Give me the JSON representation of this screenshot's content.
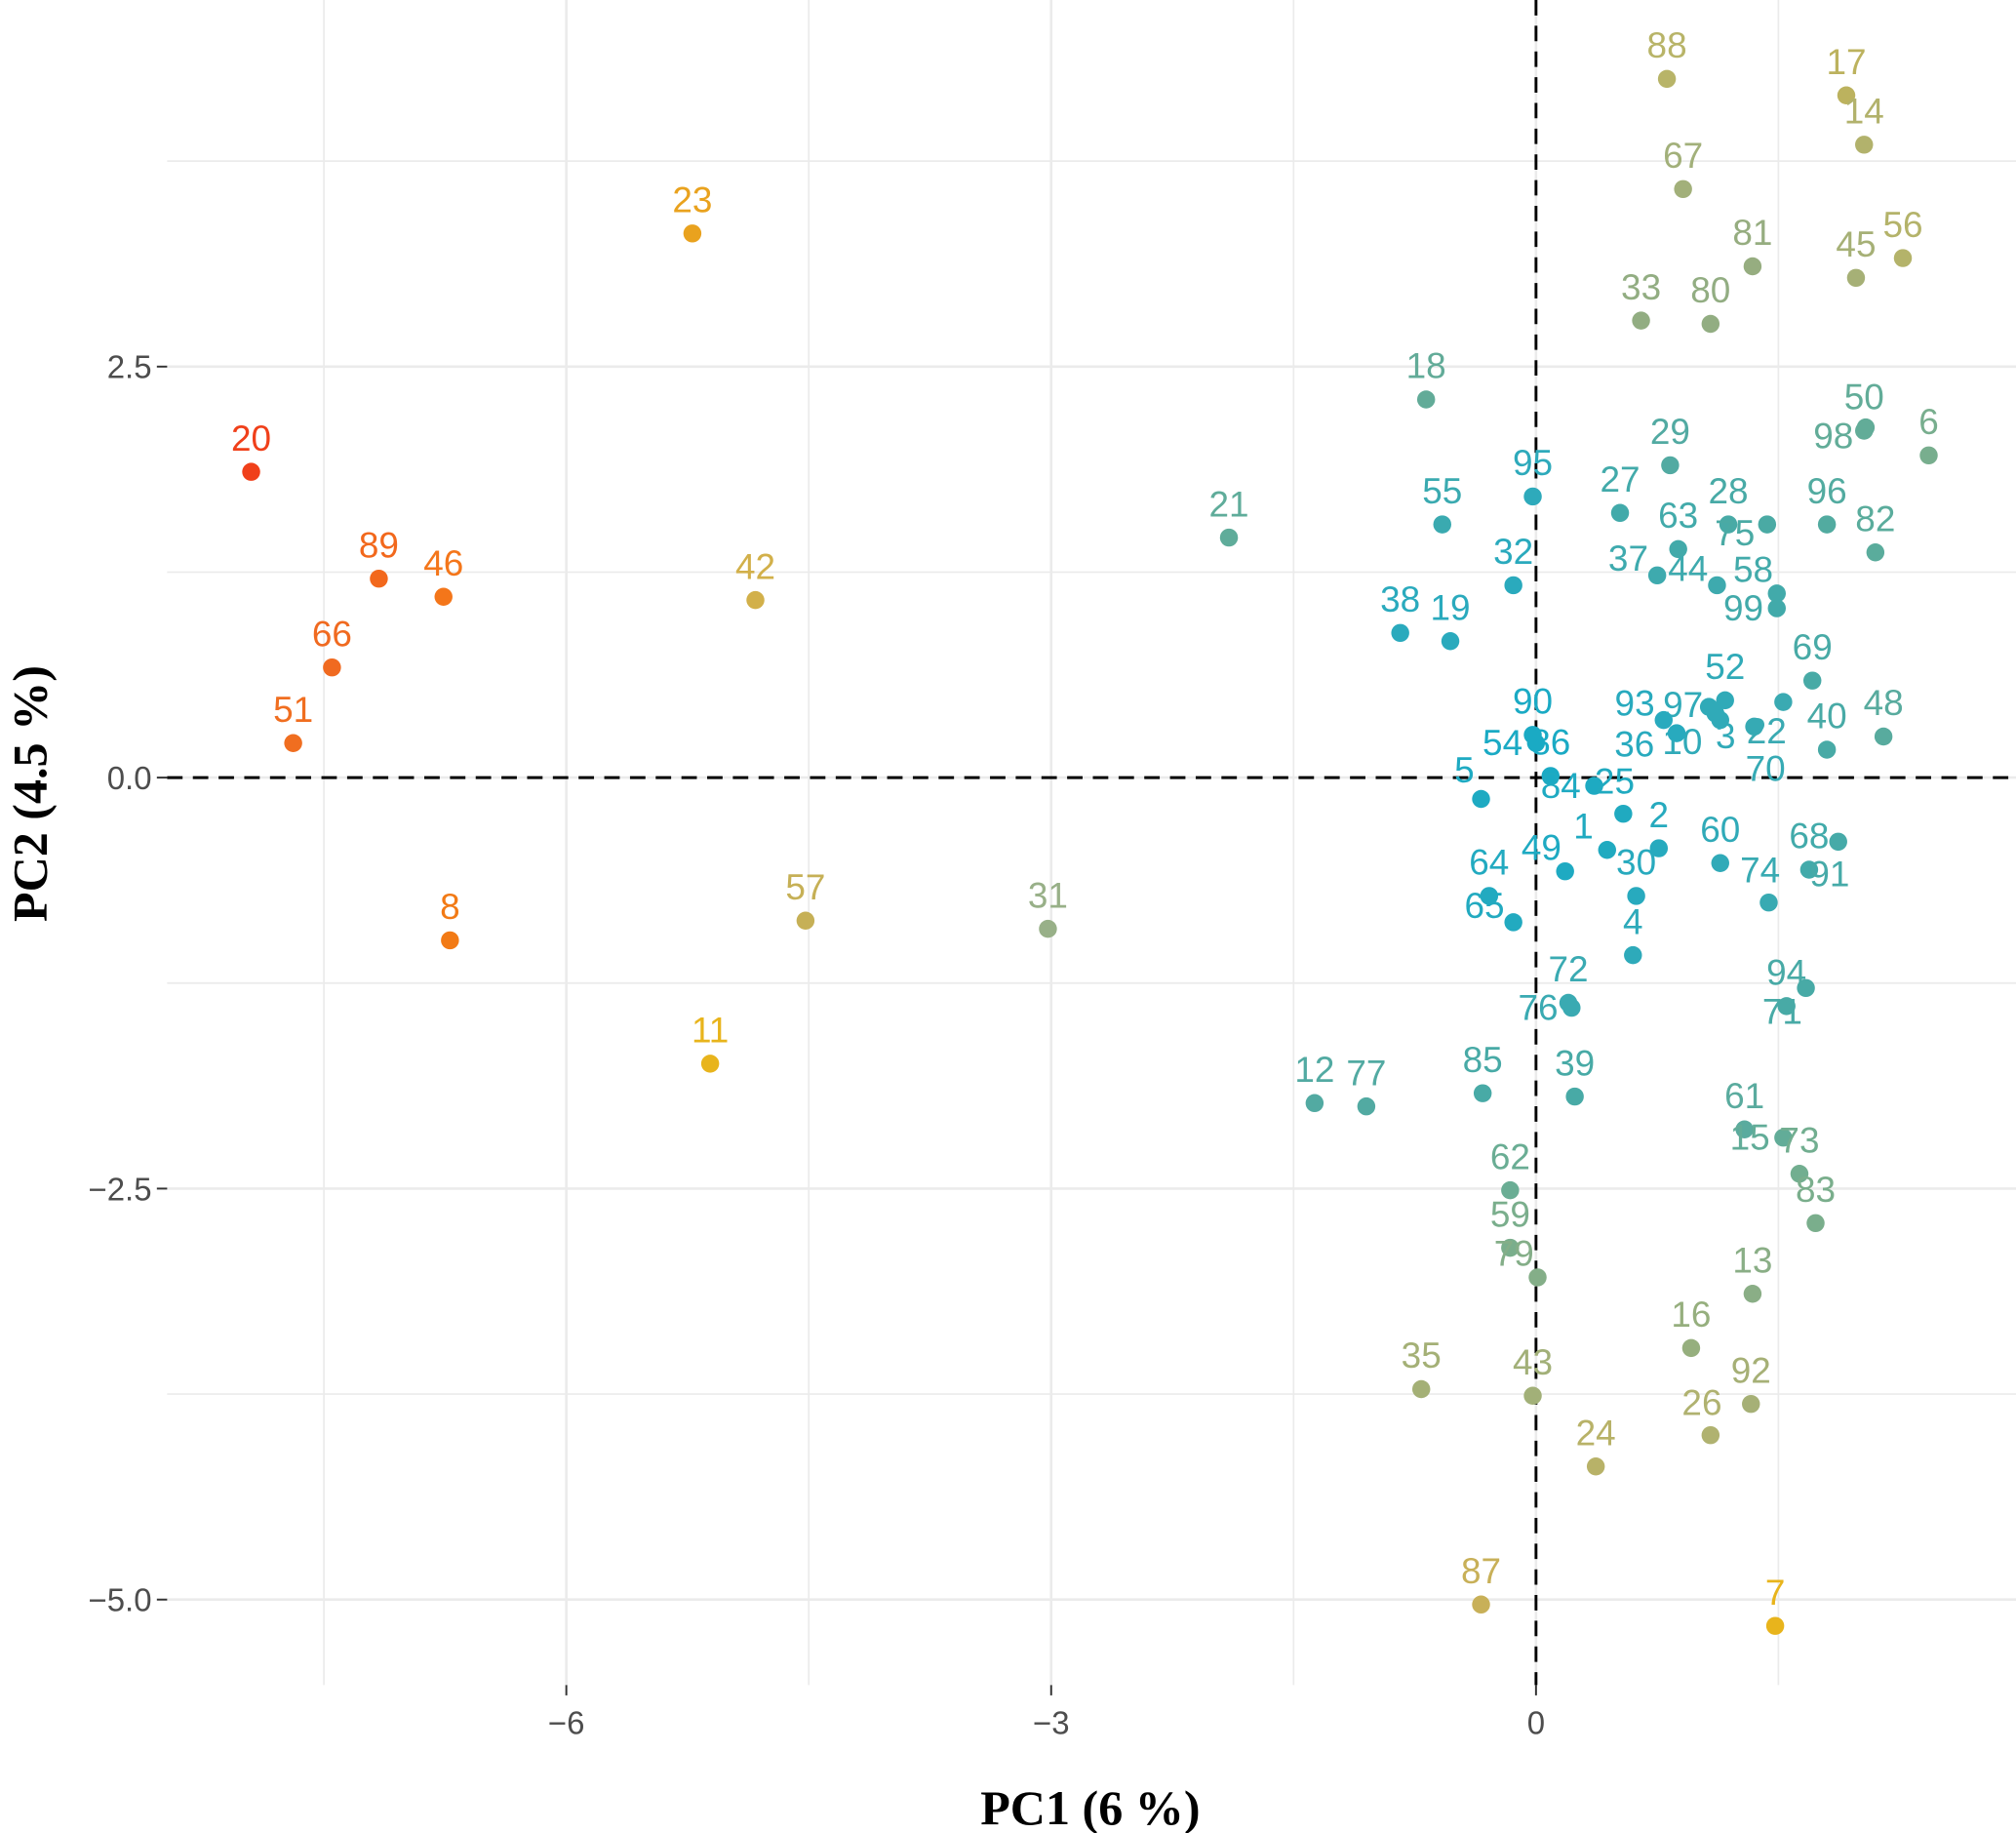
{
  "chart_data": {
    "type": "scatter",
    "title": "",
    "xlabel": "PC1 (6 %)",
    "ylabel": "PC2 (4.5 %)",
    "xlim": [
      -8.47,
      2.97
    ],
    "ylim": [
      -5.52,
      4.73
    ],
    "x_ticks": [
      -6,
      -3,
      0
    ],
    "x_tick_labels": [
      "−6",
      "−3",
      "0"
    ],
    "y_ticks": [
      -5,
      -2.5,
      0,
      2.5
    ],
    "y_tick_labels": [
      "−5.0",
      "−2.5",
      "0.0",
      "2.5"
    ],
    "grid": true,
    "reference_lines": {
      "x": 0,
      "y": 0,
      "style": "dashed"
    },
    "points": [
      {
        "label": "88",
        "x": 0.81,
        "y": 4.25,
        "color": "#b8b468"
      },
      {
        "label": "17",
        "x": 1.92,
        "y": 4.15,
        "color": "#bcb25e"
      },
      {
        "label": "14",
        "x": 2.03,
        "y": 3.85,
        "color": "#b2b26c"
      },
      {
        "label": "67",
        "x": 0.91,
        "y": 3.58,
        "color": "#a2b07a"
      },
      {
        "label": "81",
        "x": 1.34,
        "y": 3.11,
        "color": "#96ad80"
      },
      {
        "label": "45",
        "x": 1.98,
        "y": 3.04,
        "color": "#a6b076"
      },
      {
        "label": "56",
        "x": 2.27,
        "y": 3.16,
        "color": "#b4b36a"
      },
      {
        "label": "33",
        "x": 0.65,
        "y": 2.78,
        "color": "#92ad82"
      },
      {
        "label": "80",
        "x": 1.08,
        "y": 2.76,
        "color": "#92ad82"
      },
      {
        "label": "23",
        "x": -5.22,
        "y": 3.31,
        "color": "#e9a21e"
      },
      {
        "label": "18",
        "x": -0.68,
        "y": 2.3,
        "color": "#62ab98"
      },
      {
        "label": "20",
        "x": -7.95,
        "y": 1.86,
        "color": "#f0401a"
      },
      {
        "label": "89",
        "x": -7.16,
        "y": 1.21,
        "color": "#f2681c"
      },
      {
        "label": "46",
        "x": -6.76,
        "y": 1.1,
        "color": "#f4761a"
      },
      {
        "label": "66",
        "x": -7.45,
        "y": 0.67,
        "color": "#f06a20"
      },
      {
        "label": "51",
        "x": -7.69,
        "y": 0.21,
        "color": "#f06e20"
      },
      {
        "label": "8",
        "x": -6.72,
        "y": -0.99,
        "color": "#f27a15"
      },
      {
        "label": "42",
        "x": -4.83,
        "y": 1.08,
        "color": "#d2b04a"
      },
      {
        "label": "57",
        "x": -4.52,
        "y": -0.87,
        "color": "#c6b056"
      },
      {
        "label": "11",
        "x": -5.11,
        "y": -1.74,
        "color": "#e8b41c"
      },
      {
        "label": "31",
        "x": -3.02,
        "y": -0.92,
        "color": "#98b088"
      },
      {
        "label": "21",
        "x": -1.9,
        "y": 1.46,
        "color": "#5fac9a"
      },
      {
        "label": "55",
        "x": -0.58,
        "y": 1.54,
        "color": "#3aaab0"
      },
      {
        "label": "95",
        "x": -0.02,
        "y": 1.71,
        "color": "#2eaabb"
      },
      {
        "label": "29",
        "x": 0.83,
        "y": 1.9,
        "color": "#52aaa2"
      },
      {
        "label": "27",
        "x": 0.52,
        "y": 1.61,
        "color": "#42aaaa"
      },
      {
        "label": "63",
        "x": 0.88,
        "y": 1.39,
        "color": "#42aaaa"
      },
      {
        "label": "28",
        "x": 1.19,
        "y": 1.54,
        "color": "#48aaa6"
      },
      {
        "label": "75",
        "x": 1.43,
        "y": 1.54,
        "color": "#4aaaa4"
      },
      {
        "label": "96",
        "x": 1.8,
        "y": 1.54,
        "color": "#52aba0"
      },
      {
        "label": "50",
        "x": 2.03,
        "y": 2.11,
        "color": "#62ac98"
      },
      {
        "label": "98",
        "x": 2.04,
        "y": 2.13,
        "color": "#62ac98"
      },
      {
        "label": "6",
        "x": 2.43,
        "y": 1.96,
        "color": "#78ae8e"
      },
      {
        "label": "82",
        "x": 2.1,
        "y": 1.37,
        "color": "#5aac9c"
      },
      {
        "label": "37",
        "x": 0.75,
        "y": 1.23,
        "color": "#3eaaae"
      },
      {
        "label": "44",
        "x": 1.12,
        "y": 1.17,
        "color": "#3eaaae"
      },
      {
        "label": "58",
        "x": 1.49,
        "y": 1.12,
        "color": "#42aaaa"
      },
      {
        "label": "99",
        "x": 1.49,
        "y": 1.03,
        "color": "#42aaaa"
      },
      {
        "label": "32",
        "x": -0.14,
        "y": 1.17,
        "color": "#2aaabd"
      },
      {
        "label": "38",
        "x": -0.84,
        "y": 0.88,
        "color": "#2aaabd"
      },
      {
        "label": "19",
        "x": -0.53,
        "y": 0.83,
        "color": "#2aaabd"
      },
      {
        "label": "69",
        "x": 1.71,
        "y": 0.59,
        "color": "#48aaa6"
      },
      {
        "label": "52",
        "x": 1.17,
        "y": 0.47,
        "color": "#30aab8"
      },
      {
        "label": "97",
        "x": 1.11,
        "y": 0.39,
        "color": "#30aab8"
      },
      {
        "label": "3",
        "x": 1.07,
        "y": 0.43,
        "color": "#30aab8"
      },
      {
        "label": "10",
        "x": 1.14,
        "y": 0.35,
        "color": "#30aab8"
      },
      {
        "label": "22",
        "x": 1.53,
        "y": 0.46,
        "color": "#3aaab2"
      },
      {
        "label": "70",
        "x": 1.35,
        "y": 0.31,
        "color": "#36aab4"
      },
      {
        "label": "93",
        "x": 0.79,
        "y": 0.35,
        "color": "#28aabe"
      },
      {
        "label": "36",
        "x": 0.87,
        "y": 0.27,
        "color": "#28aabe"
      },
      {
        "label": "40",
        "x": 1.8,
        "y": 0.17,
        "color": "#48aaa6"
      },
      {
        "label": "48",
        "x": 2.15,
        "y": 0.25,
        "color": "#58ab9e"
      },
      {
        "label": "90",
        "x": -0.02,
        "y": 0.26,
        "color": "#1aaac4"
      },
      {
        "label": "54",
        "x": 0.0,
        "y": 0.21,
        "color": "#1aaac4"
      },
      {
        "label": "86",
        "x": 0.09,
        "y": 0.01,
        "color": "#1aaac4"
      },
      {
        "label": "84",
        "x": 0.36,
        "y": -0.05,
        "color": "#1eaac2"
      },
      {
        "label": "5",
        "x": -0.34,
        "y": -0.13,
        "color": "#1eaac2"
      },
      {
        "label": "25",
        "x": 0.54,
        "y": -0.22,
        "color": "#20aac0"
      },
      {
        "label": "2",
        "x": 0.76,
        "y": -0.43,
        "color": "#26aabe"
      },
      {
        "label": "1",
        "x": 0.44,
        "y": -0.44,
        "color": "#20aac0"
      },
      {
        "label": "60",
        "x": 1.14,
        "y": -0.52,
        "color": "#30aab8"
      },
      {
        "label": "68",
        "x": 1.69,
        "y": -0.56,
        "color": "#42aaaa"
      },
      {
        "label": "91",
        "x": 1.87,
        "y": -0.39,
        "color": "#46aaa8"
      },
      {
        "label": "74",
        "x": 1.44,
        "y": -0.76,
        "color": "#38aab2"
      },
      {
        "label": "64",
        "x": -0.29,
        "y": -0.72,
        "color": "#22aac0"
      },
      {
        "label": "49",
        "x": 0.18,
        "y": -0.57,
        "color": "#1eaac2"
      },
      {
        "label": "65",
        "x": -0.14,
        "y": -0.88,
        "color": "#22aac0"
      },
      {
        "label": "30",
        "x": 0.62,
        "y": -0.72,
        "color": "#28aabe"
      },
      {
        "label": "4",
        "x": 0.6,
        "y": -1.08,
        "color": "#2eaaba"
      },
      {
        "label": "72",
        "x": 0.2,
        "y": -1.37,
        "color": "#3aaab2"
      },
      {
        "label": "76",
        "x": 0.22,
        "y": -1.4,
        "color": "#3aaab2"
      },
      {
        "label": "94",
        "x": 1.55,
        "y": -1.39,
        "color": "#48aaa6"
      },
      {
        "label": "71",
        "x": 1.67,
        "y": -1.28,
        "color": "#48aaa6"
      },
      {
        "label": "12",
        "x": -1.37,
        "y": -1.98,
        "color": "#52aaa2"
      },
      {
        "label": "77",
        "x": -1.05,
        "y": -2.0,
        "color": "#52aaa2"
      },
      {
        "label": "85",
        "x": -0.33,
        "y": -1.92,
        "color": "#48aaa6"
      },
      {
        "label": "39",
        "x": 0.24,
        "y": -1.94,
        "color": "#48aaa6"
      },
      {
        "label": "61",
        "x": 1.29,
        "y": -2.14,
        "color": "#5aab9e"
      },
      {
        "label": "15",
        "x": 1.53,
        "y": -2.19,
        "color": "#62ac98"
      },
      {
        "label": "73",
        "x": 1.63,
        "y": -2.41,
        "color": "#72ae90"
      },
      {
        "label": "83",
        "x": 1.73,
        "y": -2.71,
        "color": "#7aae8c"
      },
      {
        "label": "62",
        "x": -0.16,
        "y": -2.51,
        "color": "#6aad94"
      },
      {
        "label": "59",
        "x": -0.16,
        "y": -2.86,
        "color": "#7aae8c"
      },
      {
        "label": "79",
        "x": 0.01,
        "y": -3.04,
        "color": "#84ae88"
      },
      {
        "label": "13",
        "x": 1.34,
        "y": -3.14,
        "color": "#8aae86"
      },
      {
        "label": "16",
        "x": 0.96,
        "y": -3.47,
        "color": "#96af7e"
      },
      {
        "label": "35",
        "x": -0.71,
        "y": -3.72,
        "color": "#a4b076"
      },
      {
        "label": "43",
        "x": -0.02,
        "y": -3.76,
        "color": "#a2b078"
      },
      {
        "label": "92",
        "x": 1.33,
        "y": -3.81,
        "color": "#a6b076"
      },
      {
        "label": "26",
        "x": 1.08,
        "y": -4.0,
        "color": "#b0b270"
      },
      {
        "label": "24",
        "x": 0.37,
        "y": -4.19,
        "color": "#b8b268"
      },
      {
        "label": "87",
        "x": -0.34,
        "y": -5.03,
        "color": "#c8b058"
      },
      {
        "label": "7",
        "x": 1.48,
        "y": -5.16,
        "color": "#e8b41c"
      }
    ]
  }
}
